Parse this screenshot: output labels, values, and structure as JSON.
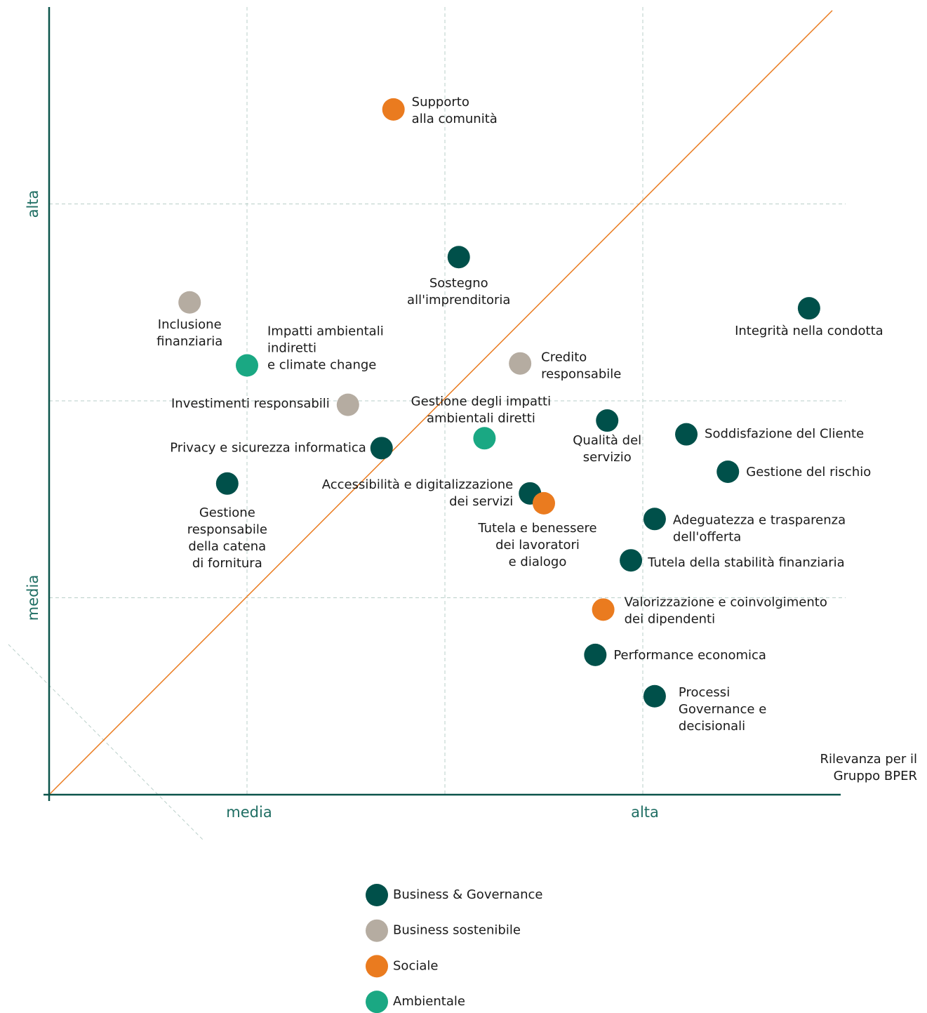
{
  "chart_data": {
    "type": "scatter",
    "x_label": "Rilevanza per il\nGruppo BPER",
    "xlim": [
      0,
      4
    ],
    "ylim": [
      0,
      4
    ],
    "xticks": [
      {
        "value": 1,
        "label": "media"
      },
      {
        "value": 3,
        "label": "alta"
      }
    ],
    "yticks": [
      {
        "value": 1,
        "label": "media"
      },
      {
        "value": 3,
        "label": "alta"
      }
    ],
    "xgrid": [
      1,
      2,
      3
    ],
    "ygrid": [
      1,
      2,
      3
    ],
    "grid": true,
    "diagonal": true,
    "diagonal_color": "#ea7b1f",
    "series": [
      {
        "name": "Business & Governance",
        "color": "#00504a",
        "labels": [
          "Sostegno\nall'imprenditoria",
          "Integrità nella condotta",
          "Qualità del\nservizio",
          "Soddisfazione del Cliente",
          "Gestione del rischio",
          "Privacy e sicurezza informatica",
          "Gestione\nresponsabile\ndella catena\ndi fornitura",
          "Accessibilità e digitalizzazione\ndei servizi",
          "Adeguatezza e trasparenza\ndell'offerta",
          "Tutela della stabilità finanziaria",
          "Performance economica",
          "Processi\nGovernance e\ndecisionali"
        ],
        "x": [
          2.07,
          3.84,
          2.82,
          3.22,
          3.43,
          1.68,
          0.9,
          2.43,
          3.06,
          2.94,
          2.76,
          3.06
        ],
        "y": [
          2.73,
          2.47,
          1.9,
          1.83,
          1.64,
          1.76,
          1.58,
          1.53,
          1.4,
          1.19,
          0.71,
          0.5
        ]
      },
      {
        "name": "Business sostenibile",
        "color": "#b5aca1",
        "labels": [
          "Inclusione\nfinanziaria",
          "Credito\nresponsabile",
          "Investimenti responsabili"
        ],
        "x": [
          0.71,
          2.38,
          1.51
        ],
        "y": [
          2.5,
          2.19,
          1.98
        ]
      },
      {
        "name": "Sociale",
        "color": "#ea7b1f",
        "labels": [
          "Supporto\nalla comunità",
          "Tutela e benessere\ndei lavoratori\ne dialogo",
          "Valorizzazione e coinvolgimento\ndei dipendenti"
        ],
        "x": [
          1.74,
          2.5,
          2.8
        ],
        "y": [
          3.48,
          1.48,
          0.94
        ]
      },
      {
        "name": "Ambientale",
        "color": "#1aa883",
        "labels": [
          "Impatti ambientali\nindiretti\ne climate change",
          "Gestione degli impatti\nambientali diretti"
        ],
        "x": [
          1.0,
          2.2
        ],
        "y": [
          2.18,
          1.81
        ]
      }
    ]
  }
}
